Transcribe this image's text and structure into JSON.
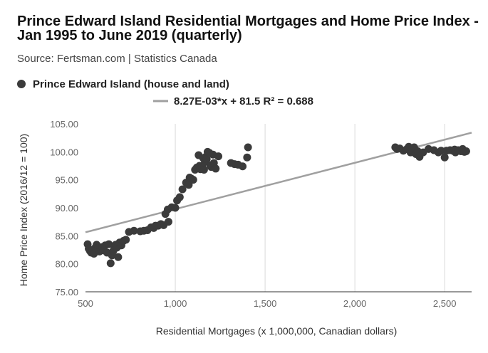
{
  "title": "Prince Edward Island Residential Mortgages and Home Price Index - Jan 1995 to June 2019 (quarterly)",
  "subtitle": "Source: Fertsman.com | Statistics Canada",
  "colors": {
    "points": "#3b3b3b",
    "trendline": "#a0a0a0",
    "grid": "#d9d9d9",
    "axis_text": "#666666"
  },
  "chart_data": {
    "type": "scatter",
    "xlabel": "Residential Mortgages (x 1,000,000, Canadian dollars)",
    "ylabel": "Home Price Index (2016/12 = 100)",
    "xlim": [
      500,
      2650
    ],
    "ylim": [
      75,
      105
    ],
    "x_ticks": [
      500,
      1000,
      1500,
      2000,
      2500
    ],
    "x_tick_labels": [
      "500",
      "1,000",
      "1,500",
      "2,000",
      "2,500"
    ],
    "y_ticks": [
      75,
      80,
      85,
      90,
      95,
      100,
      105
    ],
    "y_tick_labels": [
      "75.00",
      "80.00",
      "85.00",
      "90.00",
      "95.00",
      "100.00",
      "105.00"
    ],
    "grid": "vertical",
    "legend_position": "top-left",
    "series": [
      {
        "name": "Prince Edward Island (house and land)",
        "points": [
          [
            512,
            83.5
          ],
          [
            518,
            82.7
          ],
          [
            525,
            82.3
          ],
          [
            532,
            82.0
          ],
          [
            540,
            82.5
          ],
          [
            547,
            81.8
          ],
          [
            555,
            82.9
          ],
          [
            562,
            83.4
          ],
          [
            570,
            82.8
          ],
          [
            578,
            82.2
          ],
          [
            586,
            82.6
          ],
          [
            594,
            83.0
          ],
          [
            601,
            82.4
          ],
          [
            610,
            83.3
          ],
          [
            620,
            82.0
          ],
          [
            630,
            83.5
          ],
          [
            640,
            80.1
          ],
          [
            648,
            81.5
          ],
          [
            655,
            82.3
          ],
          [
            662,
            83.1
          ],
          [
            668,
            83.4
          ],
          [
            675,
            82.9
          ],
          [
            682,
            81.2
          ],
          [
            690,
            83.8
          ],
          [
            700,
            83.3
          ],
          [
            712,
            84.1
          ],
          [
            725,
            84.3
          ],
          [
            742,
            85.7
          ],
          [
            770,
            85.9
          ],
          [
            805,
            85.8
          ],
          [
            825,
            85.9
          ],
          [
            845,
            86.0
          ],
          [
            865,
            86.5
          ],
          [
            880,
            86.4
          ],
          [
            890,
            86.8
          ],
          [
            905,
            86.8
          ],
          [
            920,
            87.1
          ],
          [
            935,
            86.9
          ],
          [
            945,
            88.9
          ],
          [
            958,
            89.7
          ],
          [
            962,
            87.5
          ],
          [
            980,
            90.1
          ],
          [
            1000,
            90.0
          ],
          [
            1010,
            91.3
          ],
          [
            1025,
            91.9
          ],
          [
            1040,
            93.3
          ],
          [
            1060,
            94.5
          ],
          [
            1075,
            94.1
          ],
          [
            1080,
            95.4
          ],
          [
            1090,
            95.2
          ],
          [
            1100,
            95.0
          ],
          [
            1110,
            96.8
          ],
          [
            1120,
            97.2
          ],
          [
            1130,
            99.4
          ],
          [
            1135,
            97.5
          ],
          [
            1140,
            96.9
          ],
          [
            1150,
            97.3
          ],
          [
            1155,
            98.9
          ],
          [
            1160,
            96.8
          ],
          [
            1165,
            98.2
          ],
          [
            1170,
            99.1
          ],
          [
            1175,
            98.7
          ],
          [
            1180,
            100.0
          ],
          [
            1190,
            99.8
          ],
          [
            1195,
            97.6
          ],
          [
            1200,
            97.3
          ],
          [
            1210,
            99.5
          ],
          [
            1215,
            98.0
          ],
          [
            1225,
            97.0
          ],
          [
            1240,
            99.2
          ],
          [
            1310,
            98.0
          ],
          [
            1330,
            97.8
          ],
          [
            1350,
            97.7
          ],
          [
            1375,
            97.4
          ],
          [
            1400,
            99.0
          ],
          [
            1405,
            100.8
          ],
          [
            2225,
            100.8
          ],
          [
            2235,
            100.5
          ],
          [
            2250,
            100.6
          ],
          [
            2270,
            100.2
          ],
          [
            2290,
            100.5
          ],
          [
            2300,
            100.9
          ],
          [
            2310,
            99.9
          ],
          [
            2320,
            100.4
          ],
          [
            2330,
            100.8
          ],
          [
            2340,
            99.6
          ],
          [
            2350,
            100.1
          ],
          [
            2360,
            99.1
          ],
          [
            2380,
            99.9
          ],
          [
            2410,
            100.5
          ],
          [
            2440,
            100.3
          ],
          [
            2465,
            99.9
          ],
          [
            2480,
            100.2
          ],
          [
            2500,
            99.0
          ],
          [
            2510,
            100.2
          ],
          [
            2530,
            100.3
          ],
          [
            2545,
            100.2
          ],
          [
            2555,
            100.4
          ],
          [
            2560,
            99.9
          ],
          [
            2575,
            100.3
          ],
          [
            2590,
            100.1
          ],
          [
            2600,
            100.5
          ],
          [
            2610,
            100.0
          ],
          [
            2620,
            100.1
          ]
        ]
      },
      {
        "name": "8.27E-03*x + 81.5 R² = 0.688",
        "type": "trendline",
        "slope": 0.00827,
        "intercept": 81.5,
        "r_squared": 0.688
      }
    ]
  }
}
